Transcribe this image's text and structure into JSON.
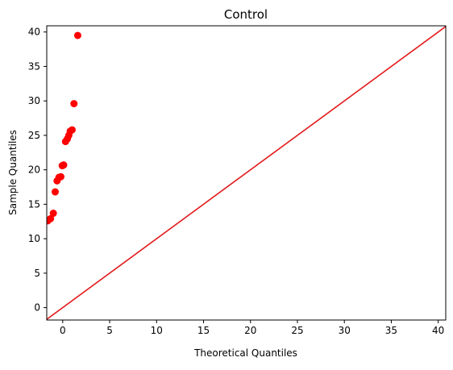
{
  "chart_data": {
    "type": "scatter",
    "title": "Control",
    "xlabel": "Theoretical Quantiles",
    "ylabel": "Sample Quantiles",
    "xlim": [
      -1.7,
      40.8
    ],
    "ylim": [
      -1.8,
      40.9
    ],
    "x_ticks": [
      0,
      5,
      10,
      15,
      20,
      25,
      30,
      35,
      40
    ],
    "y_ticks": [
      0,
      5,
      10,
      15,
      20,
      25,
      30,
      35,
      40
    ],
    "grid": false,
    "points": [
      {
        "x": -1.6,
        "y": 12.6
      },
      {
        "x": -1.3,
        "y": 12.9
      },
      {
        "x": -1.0,
        "y": 13.7
      },
      {
        "x": -0.8,
        "y": 16.8
      },
      {
        "x": -0.6,
        "y": 18.4
      },
      {
        "x": -0.4,
        "y": 18.9
      },
      {
        "x": -0.2,
        "y": 19.0
      },
      {
        "x": -0.05,
        "y": 20.6
      },
      {
        "x": 0.1,
        "y": 20.7
      },
      {
        "x": 0.3,
        "y": 24.1
      },
      {
        "x": 0.5,
        "y": 24.5
      },
      {
        "x": 0.65,
        "y": 25.0
      },
      {
        "x": 0.8,
        "y": 25.6
      },
      {
        "x": 1.0,
        "y": 25.8
      },
      {
        "x": 1.2,
        "y": 29.6
      },
      {
        "x": 1.6,
        "y": 39.5
      }
    ],
    "reference_line": {
      "from": [
        -1.8,
        -1.8
      ],
      "to": [
        41,
        41
      ]
    },
    "point_color": "#ff0000",
    "line_color": "#e31a1c"
  }
}
